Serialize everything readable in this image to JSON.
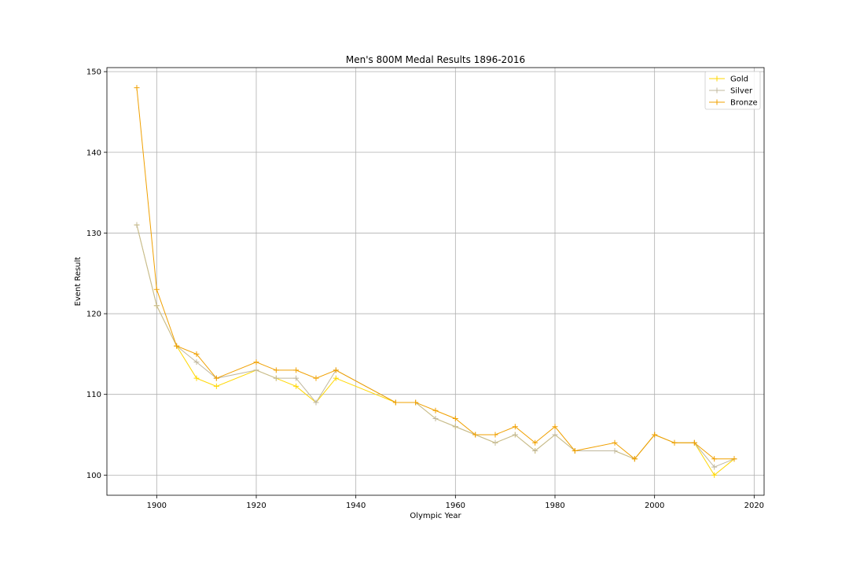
{
  "chart_data": {
    "type": "line",
    "title": "Men's 800M Medal Results 1896-2016",
    "xlabel": "Olympic Year",
    "ylabel": "Event Result",
    "xlim": [
      1890,
      2022
    ],
    "ylim": [
      97.5,
      150.5
    ],
    "xticks": [
      1900,
      1920,
      1940,
      1960,
      1980,
      2000,
      2020
    ],
    "yticks": [
      100,
      110,
      120,
      130,
      140,
      150
    ],
    "grid": true,
    "legend_position": "top-right",
    "marker": "plus",
    "x": [
      1896,
      1900,
      1904,
      1908,
      1912,
      1920,
      1924,
      1928,
      1932,
      1936,
      1948,
      1952,
      1956,
      1960,
      1964,
      1968,
      1972,
      1976,
      1980,
      1984,
      1992,
      1996,
      2000,
      2004,
      2008,
      2012,
      2016
    ],
    "series": [
      {
        "name": "Gold",
        "color": "#FFD700",
        "values": [
          131,
          121,
          116,
          112,
          111,
          113,
          112,
          111,
          109,
          112,
          109,
          109,
          107,
          106,
          105,
          104,
          105,
          103,
          105,
          103,
          103,
          102,
          105,
          104,
          104,
          100,
          102
        ]
      },
      {
        "name": "Silver",
        "color": "#C0B89E",
        "values": [
          131,
          121,
          116,
          114,
          112,
          113,
          112,
          112,
          109,
          113,
          109,
          109,
          107,
          106,
          105,
          104,
          105,
          103,
          105,
          103,
          103,
          102,
          105,
          104,
          104,
          101,
          102
        ]
      },
      {
        "name": "Bronze",
        "color": "#F0A000",
        "values": [
          148,
          123,
          116,
          115,
          112,
          114,
          113,
          113,
          112,
          113,
          109,
          109,
          108,
          107,
          105,
          105,
          106,
          104,
          106,
          103,
          104,
          102,
          105,
          104,
          104,
          102,
          102
        ]
      }
    ]
  }
}
